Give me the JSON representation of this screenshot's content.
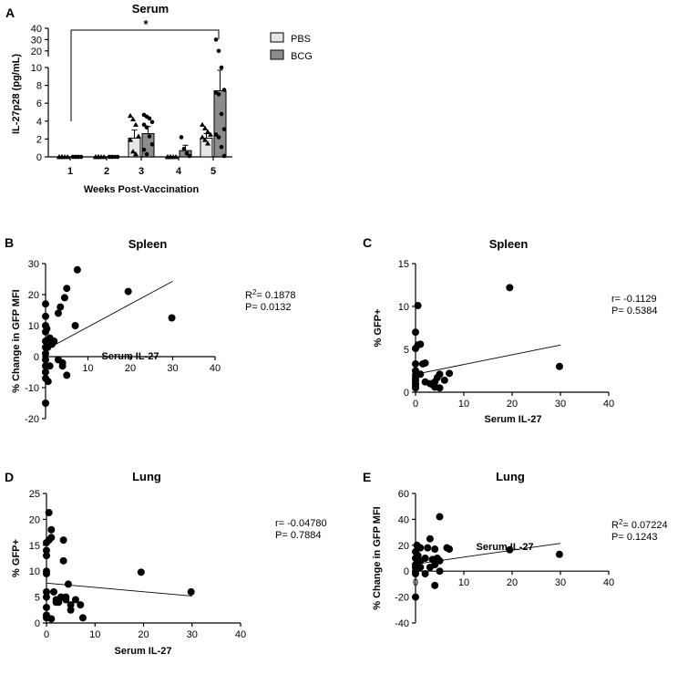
{
  "chart_data": [
    {
      "panel": "A",
      "type": "bar",
      "title": "Serum",
      "xlabel": "Weeks Post-Vaccination",
      "ylabel": "IL-27p28 (pg/mL)",
      "categories": [
        "1",
        "2",
        "3",
        "4",
        "5"
      ],
      "y_ticks_lower": [
        0,
        2,
        4,
        6,
        8,
        10
      ],
      "y_ticks_upper": [
        20,
        30,
        40
      ],
      "ylim_lower": [
        0,
        10
      ],
      "ylim_upper": [
        15,
        40
      ],
      "legend": [
        "PBS",
        "BCG"
      ],
      "significance": "*",
      "series": [
        {
          "name": "PBS",
          "color": "#e6e6e6",
          "values": [
            0,
            0,
            2.1,
            0,
            2.1
          ],
          "errors": [
            0,
            0,
            0.9,
            0,
            0.5
          ],
          "points": [
            [
              0,
              0,
              0,
              0,
              0,
              0
            ],
            [
              0,
              0,
              0,
              0,
              0,
              0
            ],
            [
              4.6,
              4.2,
              3.6,
              2.3,
              1.9,
              0.6,
              0.3
            ],
            [
              0,
              0,
              0,
              0,
              0,
              0
            ],
            [
              3.6,
              3.2,
              2.8,
              2.5,
              2.2,
              1.9,
              1.5
            ]
          ]
        },
        {
          "name": "BCG",
          "color": "#8c8c8c",
          "values": [
            0,
            0,
            2.6,
            0.7,
            7.4
          ],
          "errors": [
            0,
            0,
            0.8,
            0.6,
            2.3
          ],
          "points": [
            [
              0,
              0,
              0,
              0,
              0,
              0,
              0
            ],
            [
              0,
              0,
              0,
              0,
              0,
              0
            ],
            [
              4.7,
              4.5,
              4.3,
              3.9,
              3.6,
              3.3,
              2.3,
              1.4,
              0.8,
              0.3
            ],
            [
              2.2,
              0.9,
              0.4,
              0.1
            ],
            [
              30,
              20,
              10,
              7.5,
              7.2,
              7.0,
              4.8,
              3.1,
              2.5,
              2.2,
              1.1,
              0.1
            ]
          ]
        }
      ]
    },
    {
      "panel": "B",
      "type": "scatter",
      "title": "Spleen",
      "xlabel": "Serum IL-27",
      "ylabel": "% Change in GFP MFI",
      "xlim": [
        0,
        40
      ],
      "ylim": [
        -20,
        30
      ],
      "x_ticks": [
        0,
        10,
        20,
        30,
        40
      ],
      "y_ticks": [
        -20,
        -10,
        0,
        10,
        20,
        30
      ],
      "stat_line1": "R2= 0.1878",
      "stat_line2": "P= 0.0132",
      "fit": [
        [
          0,
          2.2
        ],
        [
          30,
          24.3
        ]
      ],
      "points": [
        [
          0,
          17
        ],
        [
          0,
          13
        ],
        [
          0,
          10
        ],
        [
          0,
          8
        ],
        [
          0,
          5
        ],
        [
          0,
          3
        ],
        [
          0,
          1
        ],
        [
          0,
          -1
        ],
        [
          0,
          -3
        ],
        [
          0,
          -5
        ],
        [
          0,
          -7
        ],
        [
          0,
          -15
        ],
        [
          0.3,
          9
        ],
        [
          0.5,
          3
        ],
        [
          0.6,
          -8
        ],
        [
          1,
          6
        ],
        [
          1,
          -3
        ],
        [
          1.5,
          4
        ],
        [
          2,
          5
        ],
        [
          3,
          14
        ],
        [
          3,
          -1
        ],
        [
          3.5,
          16
        ],
        [
          4,
          -2
        ],
        [
          4,
          -3
        ],
        [
          4.5,
          19
        ],
        [
          5,
          22
        ],
        [
          5,
          -6
        ],
        [
          7,
          10
        ],
        [
          7.5,
          28
        ],
        [
          19.5,
          21
        ],
        [
          29.8,
          12.5
        ]
      ]
    },
    {
      "panel": "C",
      "type": "scatter",
      "title": "Spleen",
      "xlabel": "Serum IL-27",
      "ylabel": "% GFP+",
      "xlim": [
        0,
        40
      ],
      "ylim": [
        0,
        15
      ],
      "x_ticks": [
        0,
        10,
        20,
        30,
        40
      ],
      "y_ticks": [
        0,
        5,
        10,
        15
      ],
      "stat_line1": "r= -0.1129",
      "stat_line2": "P= 0.5384",
      "fit": [
        [
          0,
          2.1
        ],
        [
          30,
          5.5
        ]
      ],
      "points": [
        [
          0,
          7
        ],
        [
          0,
          5.1
        ],
        [
          0,
          3.3
        ],
        [
          0,
          2.5
        ],
        [
          0,
          2.0
        ],
        [
          0,
          1.6
        ],
        [
          0,
          1.3
        ],
        [
          0,
          1.0
        ],
        [
          0,
          0.8
        ],
        [
          0,
          0.5
        ],
        [
          0.5,
          10.1
        ],
        [
          0.5,
          5.5
        ],
        [
          1,
          5.6
        ],
        [
          1,
          2.1
        ],
        [
          1.5,
          3.3
        ],
        [
          2,
          3.4
        ],
        [
          2,
          1.2
        ],
        [
          3,
          1.0
        ],
        [
          3.5,
          0.9
        ],
        [
          4,
          1.2
        ],
        [
          4,
          0.6
        ],
        [
          4.5,
          1.7
        ],
        [
          5,
          0.5
        ],
        [
          5,
          2.1
        ],
        [
          6,
          1.4
        ],
        [
          7,
          2.2
        ],
        [
          19.5,
          12.2
        ],
        [
          29.8,
          3.0
        ]
      ]
    },
    {
      "panel": "D",
      "type": "scatter",
      "title": "Lung",
      "xlabel": "Serum IL-27",
      "ylabel": "% GFP+",
      "xlim": [
        0,
        40
      ],
      "ylim": [
        0,
        25
      ],
      "x_ticks": [
        0,
        10,
        20,
        30,
        40
      ],
      "y_ticks": [
        0,
        5,
        10,
        15,
        20,
        25
      ],
      "stat_line1": "r= -0.04780",
      "stat_line2": "P= 0.7884",
      "fit": [
        [
          0,
          7.7
        ],
        [
          30,
          5.2
        ]
      ],
      "points": [
        [
          0,
          15.5
        ],
        [
          0,
          14
        ],
        [
          0,
          13
        ],
        [
          0,
          10
        ],
        [
          0,
          9.5
        ],
        [
          0,
          6
        ],
        [
          0,
          5
        ],
        [
          0,
          3
        ],
        [
          0,
          1.5
        ],
        [
          0,
          1
        ],
        [
          0.5,
          21.3
        ],
        [
          0.5,
          16
        ],
        [
          1,
          18
        ],
        [
          1,
          16.5
        ],
        [
          1,
          0.8
        ],
        [
          1.5,
          6
        ],
        [
          2,
          4.5
        ],
        [
          2,
          4
        ],
        [
          2.5,
          4
        ],
        [
          3,
          5
        ],
        [
          3.5,
          12
        ],
        [
          3.5,
          16
        ],
        [
          4,
          4.5
        ],
        [
          4,
          5
        ],
        [
          4.5,
          7.5
        ],
        [
          5,
          3.5
        ],
        [
          5,
          2.5
        ],
        [
          6,
          4.5
        ],
        [
          7,
          3.5
        ],
        [
          7.5,
          1
        ],
        [
          19.5,
          9.8
        ],
        [
          29.8,
          6
        ]
      ]
    },
    {
      "panel": "E",
      "type": "scatter",
      "title": "Lung",
      "xlabel": "Serum IL-27",
      "ylabel": "% Change in GFP MFI",
      "xlim": [
        0,
        40
      ],
      "ylim": [
        -40,
        60
      ],
      "x_ticks": [
        0,
        10,
        20,
        30,
        40
      ],
      "y_ticks": [
        -40,
        -20,
        0,
        20,
        40,
        60
      ],
      "stat_line1": "R2= 0.07224",
      "stat_line2": "P= 0.1243",
      "fit": [
        [
          0,
          5.5
        ],
        [
          30,
          21.5
        ]
      ],
      "points": [
        [
          0,
          15
        ],
        [
          0,
          10
        ],
        [
          0,
          5
        ],
        [
          0,
          3
        ],
        [
          0,
          0
        ],
        [
          0,
          -2
        ],
        [
          0,
          -20
        ],
        [
          0.3,
          20
        ],
        [
          0.5,
          12
        ],
        [
          1,
          18
        ],
        [
          1,
          8
        ],
        [
          1,
          3
        ],
        [
          2,
          10
        ],
        [
          2,
          -2
        ],
        [
          2.5,
          18
        ],
        [
          3,
          25
        ],
        [
          3,
          3
        ],
        [
          3.5,
          9
        ],
        [
          4,
          17
        ],
        [
          4,
          5
        ],
        [
          4,
          -11
        ],
        [
          4.5,
          10
        ],
        [
          5,
          42
        ],
        [
          5,
          0
        ],
        [
          5,
          8
        ],
        [
          6.5,
          18
        ],
        [
          7,
          17
        ],
        [
          19.5,
          16.5
        ],
        [
          29.8,
          13
        ]
      ]
    }
  ]
}
